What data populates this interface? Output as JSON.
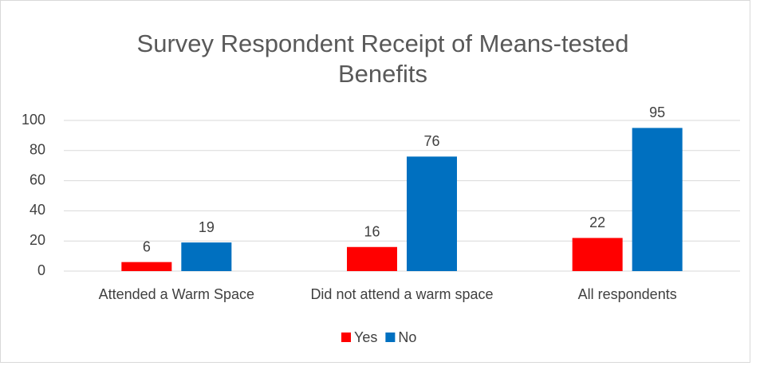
{
  "chart_data": {
    "type": "bar",
    "title": "Survey Respondent Receipt of Means-tested Benefits",
    "categories": [
      "Attended a Warm Space",
      "Did not attend a warm space",
      "All respondents"
    ],
    "series": [
      {
        "name": "Yes",
        "color": "#ff0000",
        "values": [
          6,
          16,
          22
        ]
      },
      {
        "name": "No",
        "color": "#0070c0",
        "values": [
          19,
          76,
          95
        ]
      }
    ],
    "ylim": [
      0,
      100
    ],
    "yticks": [
      0,
      20,
      40,
      60,
      80,
      100
    ],
    "grid": true,
    "legend": "bottom"
  }
}
